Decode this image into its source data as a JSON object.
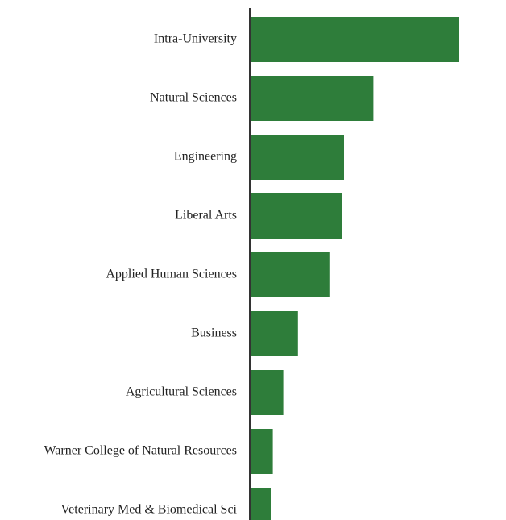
{
  "chart_data": {
    "type": "bar",
    "orientation": "horizontal",
    "title": "",
    "xlabel": "",
    "ylabel": "",
    "categories": [
      "Intra-University",
      "Natural Sciences",
      "Engineering",
      "Liberal Arts",
      "Applied Human Sciences",
      "Business",
      "Agricultural Sciences",
      "Warner College of Natural Resources",
      "Veterinary Med & Biomedical Sci"
    ],
    "values": [
      100,
      59,
      45,
      44,
      38,
      23,
      16,
      11,
      10
    ],
    "xlim": [
      0,
      100
    ],
    "grid": false,
    "legend": "none",
    "bar_color": "#2e7d3a",
    "axis_color": "#333333"
  }
}
